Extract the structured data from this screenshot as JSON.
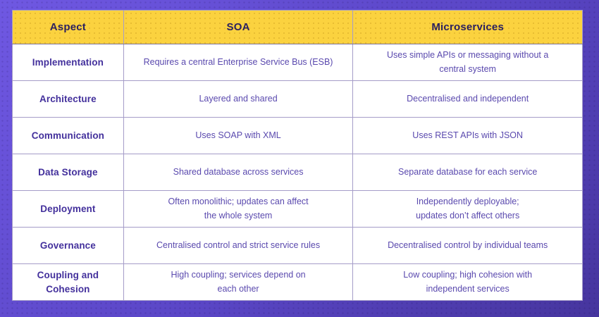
{
  "colors": {
    "bg-start": "#6f58e2",
    "bg-mid": "#5a46c6",
    "bg-end": "#46359e",
    "header-bg": "#fbd23f",
    "header-text": "#2b2060",
    "aspect-text": "#43309c",
    "cell-text": "#5a49ae",
    "border-color": "#a59cc8",
    "table-bg": "#ffffff"
  },
  "table": {
    "headers": [
      "Aspect",
      "SOA",
      "Microservices"
    ],
    "rows": [
      {
        "aspect": "Implementation",
        "soa": "Requires a central Enterprise Service Bus (ESB)",
        "microservices": "Uses simple APIs or messaging without a\ncentral system"
      },
      {
        "aspect": "Architecture",
        "soa": "Layered and shared",
        "microservices": "Decentralised and independent"
      },
      {
        "aspect": "Communication",
        "soa": "Uses SOAP with XML",
        "microservices": "Uses REST APIs with JSON"
      },
      {
        "aspect": "Data Storage",
        "soa": "Shared database across services",
        "microservices": "Separate database for each service"
      },
      {
        "aspect": "Deployment",
        "soa": "Often monolithic; updates can affect\nthe whole system",
        "microservices": "Independently deployable;\nupdates don’t affect others"
      },
      {
        "aspect": "Governance",
        "soa": "Centralised control and strict service rules",
        "microservices": "Decentralised control by individual teams"
      },
      {
        "aspect": "Coupling and\nCohesion",
        "soa": "High coupling; services depend on\neach other",
        "microservices": "Low coupling; high cohesion with\nindependent services"
      }
    ]
  }
}
